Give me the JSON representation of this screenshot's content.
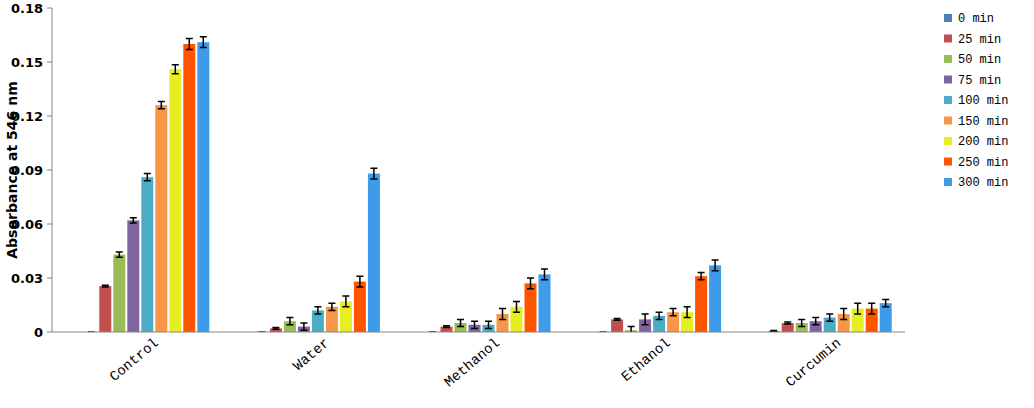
{
  "chart_data": {
    "type": "bar",
    "y_label": "Absorbance at 546 nm",
    "categories": [
      "Control",
      "Water",
      "Methanol",
      "Ethanol",
      "Curcumin"
    ],
    "ylim": [
      0,
      0.18
    ],
    "yticks": [
      0,
      0.03,
      0.06,
      0.09,
      0.12,
      0.15,
      0.18
    ],
    "grid": false,
    "legend": "right",
    "series": [
      {
        "name": "0 min",
        "color": "#4f81bd",
        "values": [
          0,
          0,
          0,
          0,
          0.0005
        ],
        "errors": [
          0,
          0,
          0,
          0,
          0.0003
        ]
      },
      {
        "name": "25 min",
        "color": "#c0504d",
        "values": [
          0.0255,
          0.002,
          0.003,
          0.007,
          0.005
        ],
        "errors": [
          0.0005,
          0.0005,
          0.0005,
          0.0005,
          0.0005
        ]
      },
      {
        "name": "50 min",
        "color": "#9bbb59",
        "values": [
          0.043,
          0.006,
          0.005,
          0.001,
          0.005
        ],
        "errors": [
          0.0015,
          0.002,
          0.002,
          0.002,
          0.002
        ]
      },
      {
        "name": "75 min",
        "color": "#8064a2",
        "values": [
          0.062,
          0.003,
          0.004,
          0.007,
          0.006
        ],
        "errors": [
          0.0015,
          0.002,
          0.002,
          0.003,
          0.002
        ]
      },
      {
        "name": "100 min",
        "color": "#4bacc6",
        "values": [
          0.086,
          0.012,
          0.004,
          0.009,
          0.008
        ],
        "errors": [
          0.002,
          0.002,
          0.002,
          0.002,
          0.002
        ]
      },
      {
        "name": "150 min",
        "color": "#f79646",
        "values": [
          0.126,
          0.014,
          0.01,
          0.011,
          0.01
        ],
        "errors": [
          0.002,
          0.002,
          0.003,
          0.002,
          0.003
        ]
      },
      {
        "name": "200 min",
        "color": "#e6ee22",
        "values": [
          0.146,
          0.017,
          0.014,
          0.011,
          0.013
        ],
        "errors": [
          0.0025,
          0.003,
          0.003,
          0.003,
          0.003
        ]
      },
      {
        "name": "250 min",
        "color": "#ff5500",
        "values": [
          0.16,
          0.028,
          0.027,
          0.031,
          0.013
        ],
        "errors": [
          0.003,
          0.003,
          0.003,
          0.002,
          0.003
        ]
      },
      {
        "name": "300 min",
        "color": "#3d9be9",
        "values": [
          0.161,
          0.088,
          0.032,
          0.037,
          0.016
        ],
        "errors": [
          0.003,
          0.003,
          0.003,
          0.003,
          0.002
        ]
      }
    ]
  }
}
